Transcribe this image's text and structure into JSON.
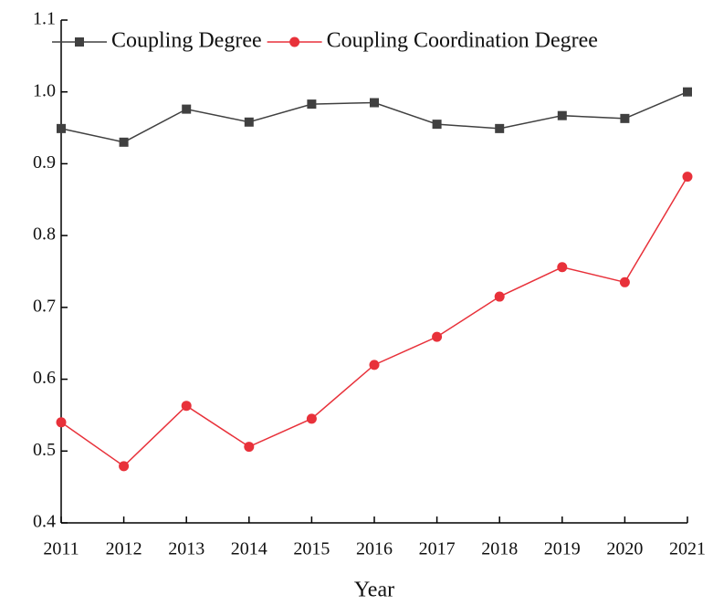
{
  "chart_data": {
    "type": "line",
    "x": [
      2011,
      2012,
      2013,
      2014,
      2015,
      2016,
      2017,
      2018,
      2019,
      2020,
      2021
    ],
    "series": [
      {
        "name": "Coupling Degree",
        "color": "#404040",
        "marker": "square",
        "values": [
          0.949,
          0.93,
          0.976,
          0.958,
          0.983,
          0.985,
          0.955,
          0.949,
          0.967,
          0.963,
          1.0
        ]
      },
      {
        "name": "Coupling Coordination Degree",
        "color": "#e8313a",
        "marker": "circle",
        "values": [
          0.54,
          0.479,
          0.563,
          0.506,
          0.545,
          0.62,
          0.659,
          0.715,
          0.756,
          0.735,
          0.882
        ]
      }
    ],
    "x_label": "Year",
    "xlim": [
      2011,
      2021
    ],
    "xticks": [
      2011,
      2012,
      2013,
      2014,
      2015,
      2016,
      2017,
      2018,
      2019,
      2020,
      2021
    ],
    "ylim": [
      0.4,
      1.1
    ],
    "yticks": [
      0.4,
      0.5,
      0.6,
      0.7,
      0.8,
      0.9,
      {
        "value": 1,
        "label": "1.0"
      },
      1.1
    ],
    "legend": "top"
  }
}
